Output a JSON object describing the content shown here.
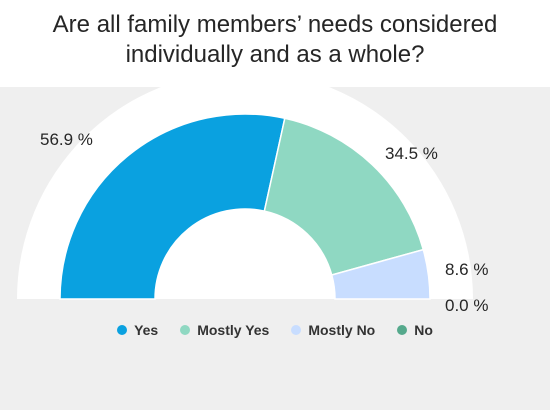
{
  "chart_data": {
    "type": "pie",
    "subtype": "semicircle-donut",
    "title": "Are all family members’ needs considered individually and as a whole?",
    "unit": "%",
    "categories": [
      "Yes",
      "Mostly Yes",
      "Mostly No",
      "No"
    ],
    "values": [
      56.9,
      34.5,
      8.6,
      0.0
    ],
    "value_labels": [
      "56.9 %",
      "34.5 %",
      "8.6 %",
      "0.0 %"
    ],
    "colors": [
      "#0aa1e0",
      "#8fd8c2",
      "#c8ddff",
      "#55a98c"
    ],
    "legend_position": "bottom"
  }
}
